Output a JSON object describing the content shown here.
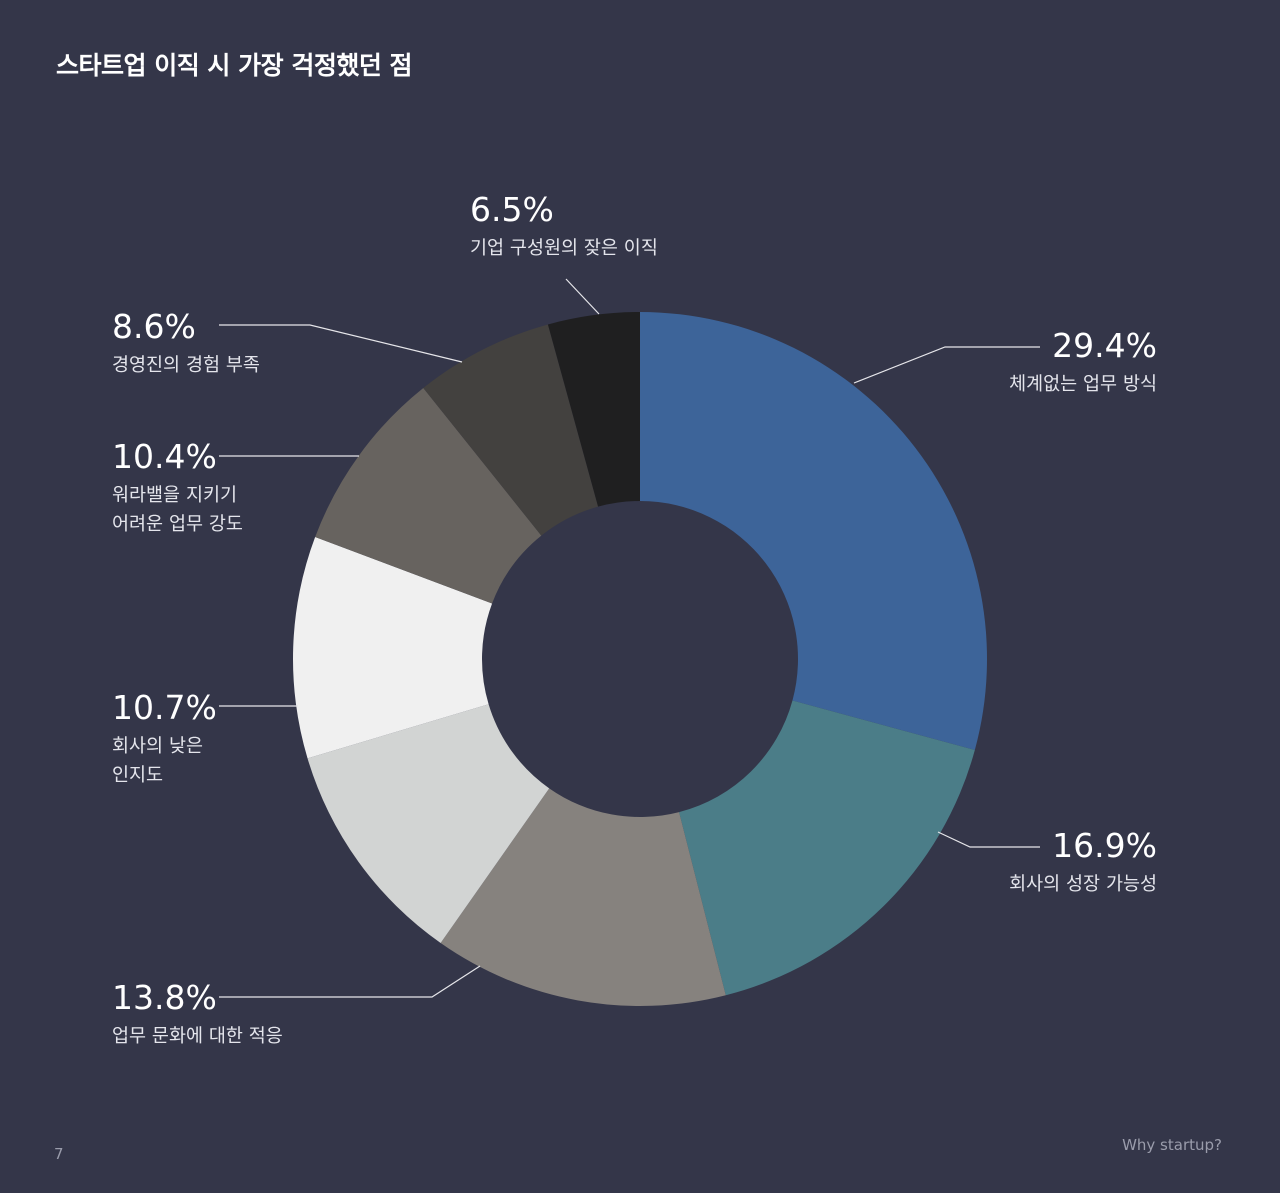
{
  "title": "스타트업 이직 시 가장 걱정했던 점",
  "footer": {
    "page_number": "7",
    "brand": "Why startup?"
  },
  "colors": {
    "background": "#343649",
    "leader_line": "#e6e6ea"
  },
  "chart_data": {
    "type": "pie",
    "donut": true,
    "start": "top, clockwise",
    "slices": [
      {
        "value_label": "29.4%",
        "value": 29.4,
        "label_lines": [
          "체계없는 업무 방식"
        ],
        "color": "#3d6499"
      },
      {
        "value_label": "16.9%",
        "value": 16.9,
        "label_lines": [
          "회사의 성장 가능성"
        ],
        "color": "#4b7d88"
      },
      {
        "value_label": "13.8%",
        "value": 13.8,
        "label_lines": [
          "업무 문화에 대한 적응"
        ],
        "color": "#86827e"
      },
      {
        "value_label": "10.7%",
        "value": 10.7,
        "label_lines": [
          "회사의 낮은",
          "인지도"
        ],
        "color": "#d2d4d3"
      },
      {
        "value_label": "10.4%",
        "value": 10.4,
        "label_lines": [
          "워라밸을 지키기",
          "어려운 업무 강도"
        ],
        "color": "#f0f0f0"
      },
      {
        "value_label": "8.6%",
        "value": 8.6,
        "label_lines": [
          "경영진의 경험 부족"
        ],
        "color": "#67635f"
      },
      {
        "value_label": "6.5%",
        "value": 6.5,
        "label_lines": [
          "기업 구성원의 잦은 이직"
        ],
        "color": "#43413f"
      },
      {
        "value_label": "",
        "value": 4.3,
        "label_lines": [],
        "color": "#1f1f20"
      }
    ]
  }
}
